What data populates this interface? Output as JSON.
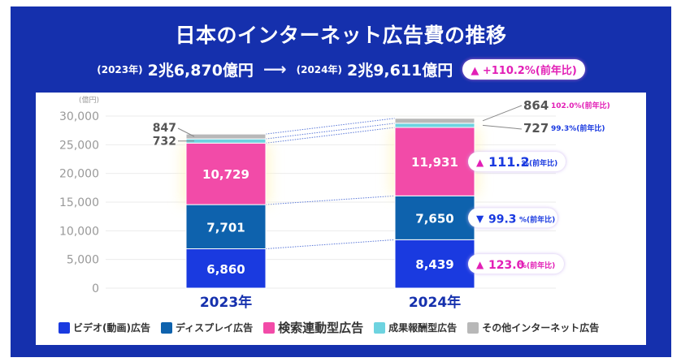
{
  "header": {
    "title": "日本のインターネット広告費の推移",
    "from_year": "(2023年)",
    "from_amount": "2兆6,870億円",
    "arrow": "⟶",
    "to_year": "(2024年)",
    "to_amount": "2兆9,611億円",
    "growth_badge": "▲ +110.2%(前年比)"
  },
  "colors": {
    "frame": "#1530ad",
    "video": "#1a3ae0",
    "display": "#0e62ad",
    "search": "#f24ba8",
    "affiliate": "#6dd3e0",
    "other": "#b8b8b8",
    "up": "#e21fb6",
    "down": "#1a3ae0"
  },
  "chart_data": {
    "type": "bar",
    "stacked": true,
    "title": "日本のインターネット広告費の推移",
    "ylabel": "(億円)",
    "xlabel": "",
    "ylim": [
      0,
      30000
    ],
    "yticks": [
      0,
      5000,
      10000,
      15000,
      20000,
      25000,
      30000
    ],
    "ytick_labels": [
      "0",
      "5,000",
      "10,000",
      "15,000",
      "20,000",
      "25,000",
      "30,000"
    ],
    "grid": true,
    "legend_position": "bottom",
    "categories": [
      "2023年",
      "2024年"
    ],
    "series": [
      {
        "key": "video",
        "name": "ビデオ(動画)広告",
        "values": [
          6860,
          8439
        ],
        "labels": [
          "6,860",
          "8,439"
        ]
      },
      {
        "key": "display",
        "name": "ディスプレイ広告",
        "values": [
          7701,
          7650
        ],
        "labels": [
          "7,701",
          "7,650"
        ]
      },
      {
        "key": "search",
        "name": "検索連動型広告",
        "values": [
          10729,
          11931
        ],
        "labels": [
          "10,729",
          "11,931"
        ]
      },
      {
        "key": "affiliate",
        "name": "成果報酬型広告",
        "values": [
          732,
          727
        ],
        "labels": [
          "732",
          "727"
        ]
      },
      {
        "key": "other",
        "name": "その他インターネット広告",
        "values": [
          847,
          864
        ],
        "labels": [
          "847",
          "864"
        ]
      }
    ],
    "yoy_annotations": [
      {
        "series": "search",
        "direction": "up",
        "value": "111.2",
        "suffix": "%(前年比)"
      },
      {
        "series": "display",
        "direction": "down",
        "value": "99.3",
        "suffix": "%(前年比)"
      },
      {
        "series": "video",
        "direction": "up",
        "value": "123.0",
        "suffix": "%(前年比)"
      },
      {
        "series": "other",
        "direction": "up",
        "value": "102.0",
        "suffix": "%(前年比)"
      },
      {
        "series": "affiliate",
        "direction": "down",
        "value": "99.3",
        "suffix": "%(前年比)"
      }
    ]
  },
  "legend": [
    {
      "key": "video",
      "label": "ビデオ(動画)広告"
    },
    {
      "key": "display",
      "label": "ディスプレイ広告"
    },
    {
      "key": "search",
      "label": "検索連動型広告"
    },
    {
      "key": "affiliate",
      "label": "成果報酬型広告"
    },
    {
      "key": "other",
      "label": "その他インターネット広告"
    }
  ]
}
